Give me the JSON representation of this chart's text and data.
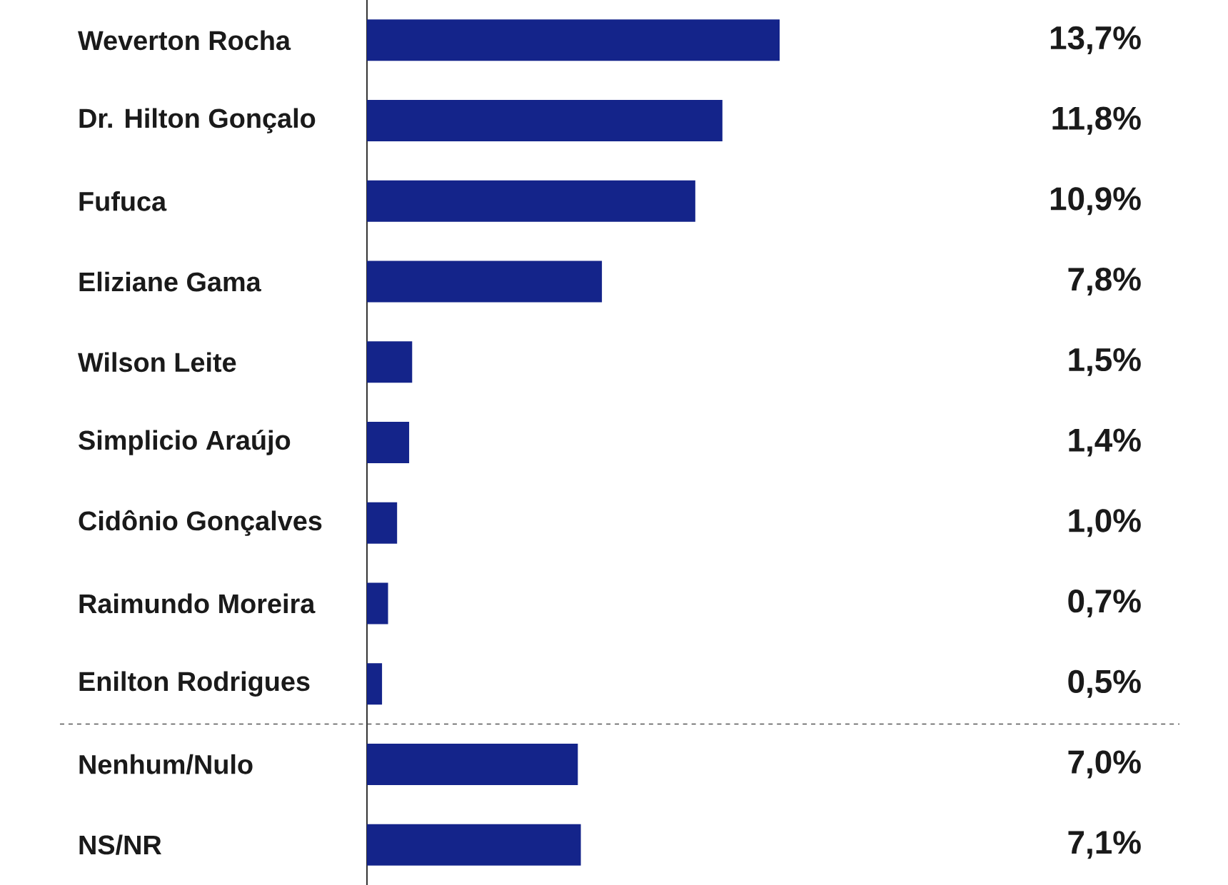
{
  "chart_data": {
    "type": "bar",
    "orientation": "horizontal",
    "categories": [
      "Weverton Rocha",
      "Dr. Hilton Gonçalo",
      "Fufuca",
      "Eliziane Gama",
      "Wilson Leite",
      "Simplicio Araújo",
      "Cidônio Gonçalves",
      "Raimundo Moreira",
      "Enilton Rodrigues",
      "Nenhum/Nulo",
      "NS/NR"
    ],
    "values": [
      13.7,
      11.8,
      10.9,
      7.8,
      1.5,
      1.4,
      1.0,
      0.7,
      0.5,
      7.0,
      7.1
    ],
    "value_labels": [
      "13,7%",
      "11,8%",
      "10,9%",
      "7,8%",
      "1,5%",
      "1,4%",
      "1,0%",
      "0,7%",
      "0,5%",
      "7,0%",
      "7,1%"
    ],
    "color": "#14248a",
    "tick_labels": "y"
  }
}
